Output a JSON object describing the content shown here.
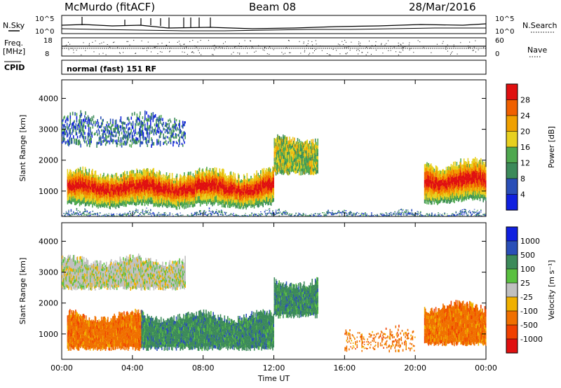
{
  "header": {
    "station": "McMurdo (fitACF)",
    "beam": "Beam 08",
    "date": "28/Mar/2016"
  },
  "strip_panels": {
    "nsky": {
      "label": "N.Sky",
      "ticks": [
        "10^5",
        "10^0"
      ]
    },
    "nsearch": {
      "label": "N.Search",
      "ticks": [
        "10^5",
        "10^0"
      ]
    },
    "freq": {
      "label_line1": "Freq.",
      "label_line2": "[MHz]",
      "ticks": [
        "18",
        "8"
      ]
    },
    "nave": {
      "label": "Nave",
      "ticks": [
        "60",
        "0"
      ]
    },
    "cpid": {
      "label": "CPID",
      "text": "normal (fast) 151 RF"
    }
  },
  "chart_data": [
    {
      "type": "heatmap",
      "name": "power",
      "ylabel": "Slant Range [km]",
      "xlabel": "Time UT",
      "x_ticks": [
        "00:00",
        "04:00",
        "08:00",
        "12:00",
        "16:00",
        "20:00",
        "00:00"
      ],
      "x_range_hours": [
        0,
        24
      ],
      "y_ticks": [
        1000,
        2000,
        3000,
        4000
      ],
      "ylim": [
        180,
        4600
      ],
      "colorbar": {
        "label": "Power [dB]",
        "ticks": [
          "4",
          "8",
          "12",
          "16",
          "20",
          "24",
          "28"
        ],
        "range": [
          0,
          32
        ],
        "colors": [
          "#1020e0",
          "#2a4fb8",
          "#3c8a5a",
          "#4fa84f",
          "#e8d020",
          "#f0a000",
          "#f06000",
          "#e01010"
        ]
      },
      "echo_bands": [
        {
          "t0": 0.3,
          "t1": 12.0,
          "r0": 450,
          "r1": 1700,
          "level": "high"
        },
        {
          "t0": 0.0,
          "t1": 7.0,
          "r0": 2400,
          "r1": 3500,
          "level": "low"
        },
        {
          "t0": 12.0,
          "t1": 14.5,
          "r0": 1500,
          "r1": 2800,
          "level": "mid"
        },
        {
          "t0": 20.5,
          "t1": 24.0,
          "r0": 600,
          "r1": 2000,
          "level": "high"
        },
        {
          "t0": 0.0,
          "t1": 24.0,
          "r0": 180,
          "r1": 350,
          "level": "low"
        }
      ]
    },
    {
      "type": "heatmap",
      "name": "velocity",
      "ylabel": "Slant Range [km]",
      "xlabel": "Time UT",
      "x_ticks": [
        "00:00",
        "04:00",
        "08:00",
        "12:00",
        "16:00",
        "20:00",
        "00:00"
      ],
      "x_range_hours": [
        0,
        24
      ],
      "y_ticks": [
        1000,
        2000,
        3000,
        4000
      ],
      "ylim": [
        180,
        4600
      ],
      "colorbar": {
        "label": "Velocity [m s⁻¹]",
        "ticks": [
          "1000",
          "500",
          "100",
          "25",
          "-25",
          "-100",
          "-500",
          "-1000"
        ],
        "colors": [
          "#1020e0",
          "#2a4fb8",
          "#3c8a5a",
          "#5ac040",
          "#c0c0c0",
          "#f0b000",
          "#f07000",
          "#f04000",
          "#e01010"
        ]
      },
      "echo_bands": [
        {
          "t0": 0.3,
          "t1": 4.5,
          "r0": 450,
          "r1": 1700,
          "level": "negative"
        },
        {
          "t0": 4.5,
          "t1": 12.0,
          "r0": 450,
          "r1": 1700,
          "level": "positive"
        },
        {
          "t0": 0.0,
          "t1": 7.0,
          "r0": 2400,
          "r1": 3500,
          "level": "near-zero"
        },
        {
          "t0": 12.0,
          "t1": 14.5,
          "r0": 1500,
          "r1": 2800,
          "level": "positive"
        },
        {
          "t0": 20.5,
          "t1": 24.0,
          "r0": 600,
          "r1": 2000,
          "level": "negative"
        },
        {
          "t0": 16.0,
          "t1": 20.0,
          "r0": 400,
          "r1": 1200,
          "level": "negative-sparse"
        }
      ]
    }
  ]
}
